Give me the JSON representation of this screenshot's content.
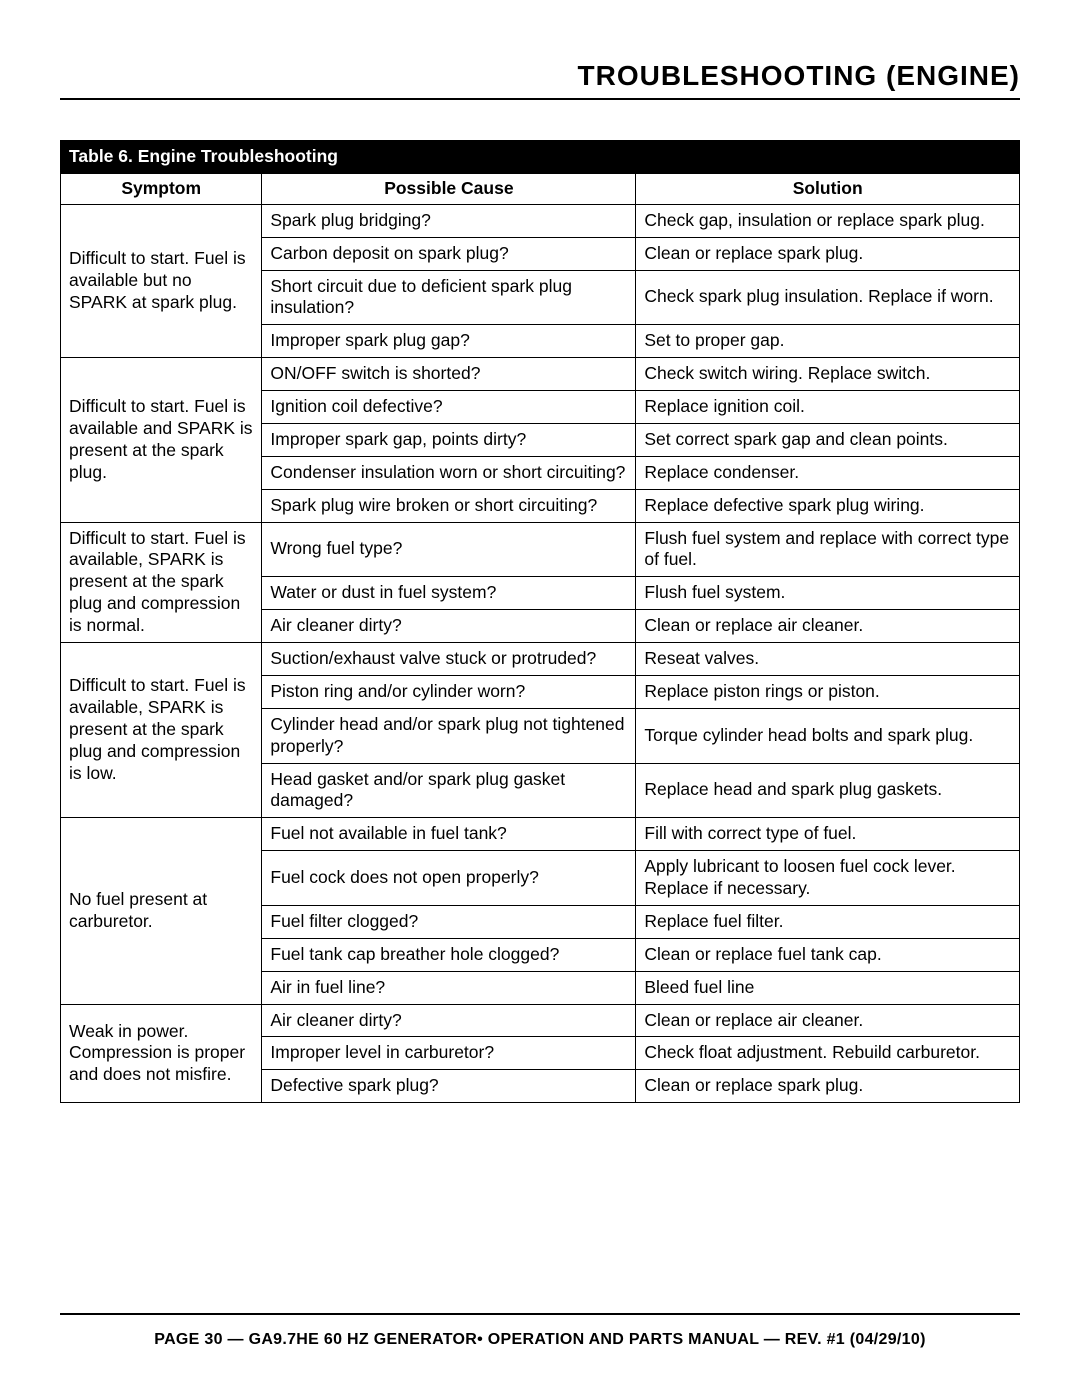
{
  "title": "TROUBLESHOOTING (ENGINE)",
  "footer": "PAGE 30 — GA9.7HE 60 HZ GENERATOR• OPERATION AND PARTS MANUAL — REV. #1 (04/29/10)",
  "table": {
    "caption": "Table 6. Engine Troubleshooting",
    "columns": [
      "Symptom",
      "Possible Cause",
      "Solution"
    ],
    "col_widths_pct": [
      21,
      39,
      40
    ],
    "border_color": "#000000",
    "header_bg": "#000000",
    "header_fg": "#ffffff",
    "cell_fontsize_pt": 13,
    "groups": [
      {
        "symptom": "Difficult to start. Fuel is available but no SPARK at spark plug.",
        "rows": [
          {
            "cause": "Spark plug bridging?",
            "solution": "Check gap, insulation or replace spark plug."
          },
          {
            "cause": "Carbon deposit on spark plug?",
            "solution": "Clean or replace spark plug."
          },
          {
            "cause": "Short circuit due to deficient spark plug insulation?",
            "solution": "Check spark plug insulation. Replace if worn."
          },
          {
            "cause": "Improper spark plug gap?",
            "solution": "Set to proper gap."
          }
        ]
      },
      {
        "symptom": "Difficult to start. Fuel is available and SPARK is present at the spark plug.",
        "rows": [
          {
            "cause": "ON/OFF switch is shorted?",
            "solution": "Check switch wiring. Replace switch."
          },
          {
            "cause": "Ignition coil defective?",
            "solution": "Replace ignition coil."
          },
          {
            "cause": "Improper spark gap, points dirty?",
            "solution": "Set correct spark gap and clean points."
          },
          {
            "cause": "Condenser insulation worn or short circuiting?",
            "solution": "Replace condenser."
          },
          {
            "cause": "Spark plug wire broken or short circuiting?",
            "solution": "Replace defective spark plug wiring."
          }
        ]
      },
      {
        "symptom": "Difficult to start. Fuel is available, SPARK is present at the spark plug  and compression is normal.",
        "rows": [
          {
            "cause": "Wrong fuel type?",
            "solution": "Flush fuel system and replace with correct type of fuel."
          },
          {
            "cause": "Water or dust in fuel system?",
            "solution": "Flush fuel system."
          },
          {
            "cause": "Air cleaner dirty?",
            "solution": "Clean or replace air cleaner."
          }
        ]
      },
      {
        "symptom": "Difficult to start. Fuel is available, SPARK is present at the spark plug  and compression is low.",
        "rows": [
          {
            "cause": "Suction/exhaust valve stuck or protruded?",
            "solution": "Reseat valves."
          },
          {
            "cause": "Piston ring and/or cylinder worn?",
            "solution": "Replace piston rings or piston."
          },
          {
            "cause": "Cylinder head and/or spark plug not tightened properly?",
            "solution": "Torque cylinder head bolts and spark plug."
          },
          {
            "cause": "Head gasket and/or spark plug gasket damaged?",
            "solution": "Replace head and spark plug gaskets."
          }
        ]
      },
      {
        "symptom": "No fuel present at carburetor.",
        "rows": [
          {
            "cause": "Fuel not available in fuel tank?",
            "solution": "Fill with correct type of fuel."
          },
          {
            "cause": "Fuel cock does not open properly?",
            "solution": "Apply lubricant to loosen fuel cock lever. Replace if necessary."
          },
          {
            "cause": "Fuel filter clogged?",
            "solution": "Replace fuel filter."
          },
          {
            "cause": "Fuel tank cap breather hole clogged?",
            "solution": "Clean or replace fuel tank cap."
          },
          {
            "cause": "Air in fuel line?",
            "solution": "Bleed fuel line"
          }
        ]
      },
      {
        "symptom": "Weak in power. Compression is proper and does not misfire.",
        "rows": [
          {
            "cause": "Air cleaner dirty?",
            "solution": "Clean or replace air cleaner."
          },
          {
            "cause": "Improper level in carburetor?",
            "solution": "Check float adjustment. Rebuild carburetor."
          },
          {
            "cause": "Defective spark plug?",
            "solution": "Clean or replace spark plug."
          }
        ]
      }
    ]
  }
}
